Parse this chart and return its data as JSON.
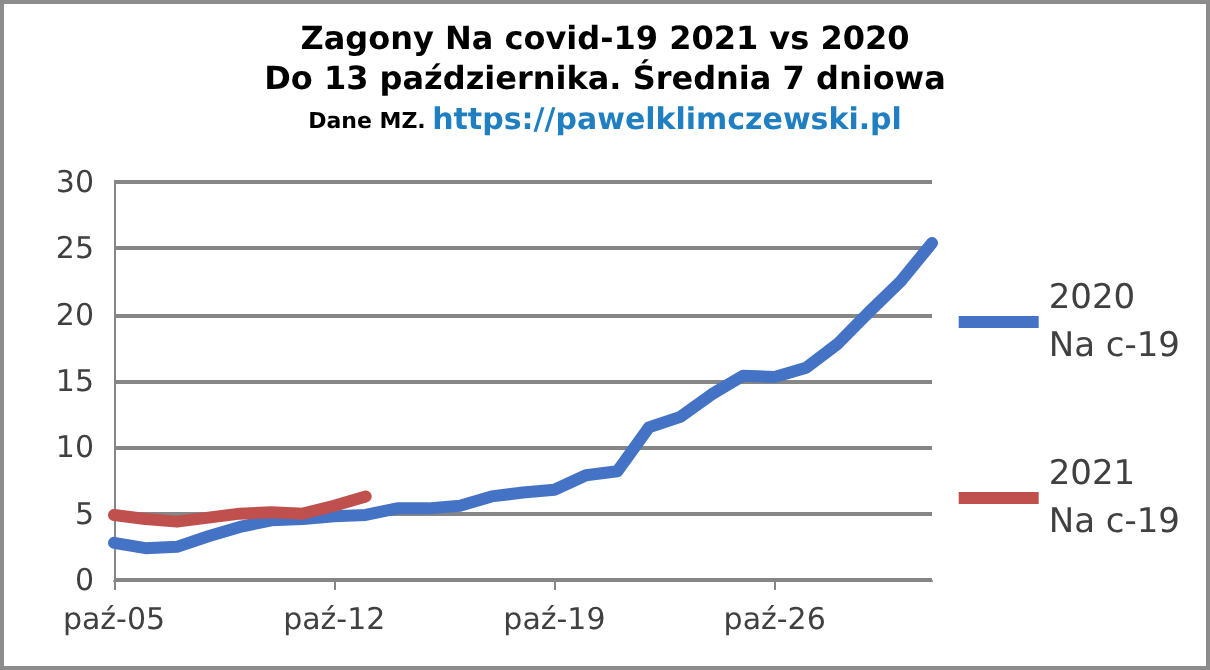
{
  "chart_data": {
    "type": "line",
    "title": "Zagony Na covid-19 2021 vs 2020",
    "subtitle": "Do 13 października. Średnia 7 dniowa",
    "annotations": [
      "Dane MZ.",
      "https://pawelklimczewski.pl"
    ],
    "categories": [
      "paź-05",
      null,
      null,
      null,
      null,
      null,
      null,
      "paź-12",
      null,
      null,
      null,
      null,
      null,
      null,
      "paź-19",
      null,
      null,
      null,
      null,
      null,
      null,
      "paź-26",
      null,
      null,
      null,
      null,
      null
    ],
    "series": [
      {
        "name": "2020 Na c-19",
        "color": "#4472c4",
        "values": [
          2.8,
          2.4,
          2.5,
          3.3,
          4.0,
          4.5,
          4.6,
          4.8,
          4.9,
          5.4,
          5.4,
          5.6,
          6.3,
          6.6,
          6.8,
          7.9,
          8.2,
          11.5,
          12.3,
          14.0,
          15.4,
          15.3,
          16.0,
          17.8,
          20.2,
          22.5,
          25.4
        ]
      },
      {
        "name": "2021 Na c-19",
        "color": "#c0504d",
        "values": [
          4.9,
          4.6,
          4.4,
          4.7,
          5.0,
          5.1,
          5.0,
          5.6,
          6.3,
          null,
          null,
          null,
          null,
          null,
          null,
          null,
          null,
          null,
          null,
          null,
          null,
          null,
          null,
          null,
          null,
          null,
          null
        ]
      }
    ],
    "ylim": [
      0,
      30
    ],
    "yticks": [
      0,
      5,
      10,
      15,
      20,
      25,
      30
    ],
    "grid": "y",
    "legend": "right",
    "marker": "none",
    "line_style": "solid"
  }
}
